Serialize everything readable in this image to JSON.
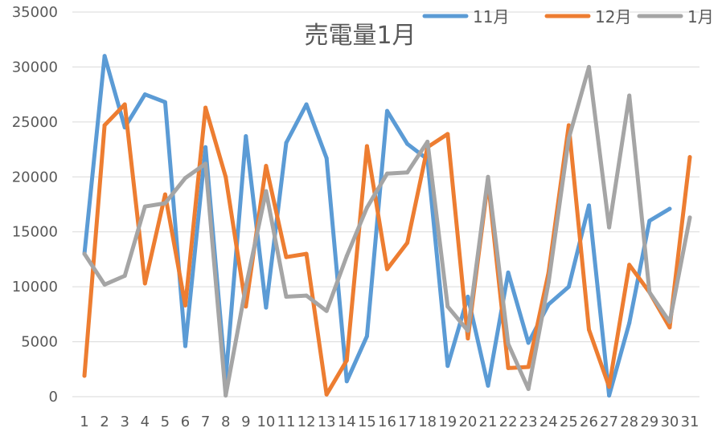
{
  "chart_data": {
    "type": "line",
    "title": "売電量1月",
    "xlabel": "",
    "ylabel": "",
    "ylim": [
      0,
      35000
    ],
    "yticks": [
      "0",
      "5000",
      "10000",
      "15000",
      "20000",
      "25000",
      "30000",
      "35000"
    ],
    "categories": [
      "1",
      "2",
      "3",
      "4",
      "5",
      "6",
      "7",
      "8",
      "9",
      "10",
      "11",
      "12",
      "13",
      "14",
      "15",
      "16",
      "17",
      "18",
      "19",
      "20",
      "21",
      "22",
      "23",
      "24",
      "25",
      "26",
      "27",
      "28",
      "29",
      "30",
      "31"
    ],
    "grid": true,
    "legend_position": "top-right",
    "series": [
      {
        "name": "11月",
        "color": "#5b9bd5",
        "values": [
          13000,
          31000,
          24500,
          27500,
          26800,
          4600,
          22700,
          1600,
          23700,
          8100,
          23100,
          26600,
          21700,
          1400,
          5500,
          26000,
          23000,
          21600,
          2800,
          9100,
          1000,
          11300,
          4900,
          8400,
          10000,
          17400,
          100,
          6700,
          16000,
          17100,
          null
        ]
      },
      {
        "name": "12月",
        "color": "#ed7d31",
        "values": [
          1900,
          24700,
          26600,
          10300,
          18400,
          8300,
          26300,
          20000,
          8200,
          21000,
          12700,
          13000,
          200,
          3300,
          22800,
          11600,
          14000,
          22700,
          23900,
          5300,
          19600,
          2600,
          2700,
          11300,
          24700,
          6100,
          900,
          12000,
          9500,
          6300,
          21800
        ]
      },
      {
        "name": "1月",
        "color": "#a5a5a5",
        "values": [
          13000,
          10200,
          11000,
          17300,
          17600,
          19900,
          21200,
          100,
          10000,
          18700,
          9100,
          9200,
          7800,
          12800,
          17200,
          20300,
          20400,
          23200,
          8200,
          6000,
          20000,
          4800,
          700,
          10400,
          23500,
          30000,
          15400,
          27400,
          9500,
          6800,
          16300
        ]
      }
    ]
  }
}
